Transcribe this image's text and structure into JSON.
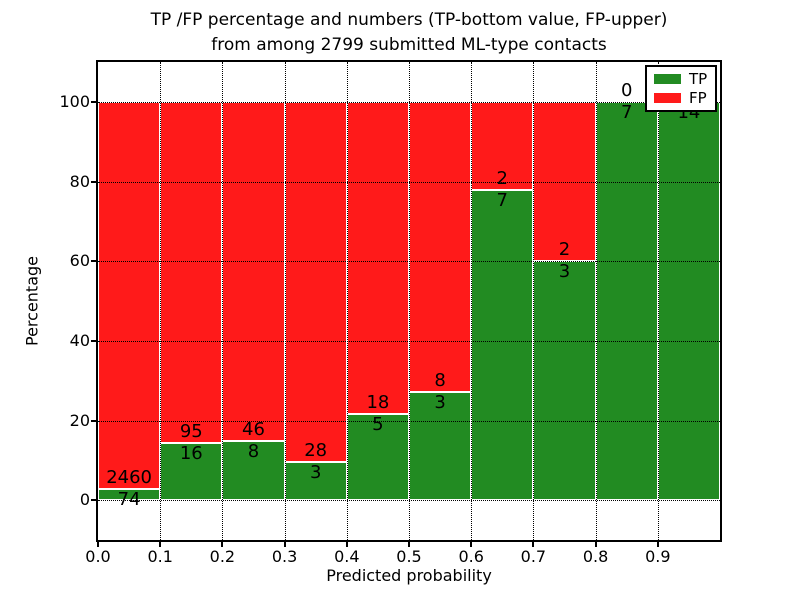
{
  "chart_data": {
    "type": "bar",
    "stacked": true,
    "normalized_to_percent": true,
    "title": "TP /FP percentage and numbers (TP-bottom value, FP-upper) from among 2799 submitted ML-type contacts",
    "title_line1": "TP /FP percentage and numbers (TP-bottom value, FP-upper)",
    "title_line2": "from among 2799 submitted ML-type contacts",
    "xlabel": "Predicted probability",
    "ylabel": "Percentage",
    "xtick_labels": [
      "0.0",
      "0.1",
      "0.2",
      "0.3",
      "0.4",
      "0.5",
      "0.6",
      "0.7",
      "0.8",
      "0.9"
    ],
    "yticks": [
      0,
      20,
      40,
      60,
      80,
      100
    ],
    "ylim": [
      -10,
      110
    ],
    "xlim": [
      0.0,
      1.0
    ],
    "bin_width": 0.1,
    "series": [
      {
        "name": "TP",
        "color": "#228b22",
        "counts": [
          74,
          16,
          8,
          3,
          5,
          3,
          7,
          3,
          7,
          14
        ]
      },
      {
        "name": "FP",
        "color": "#ff1a1a",
        "counts": [
          2460,
          95,
          46,
          28,
          18,
          8,
          2,
          2,
          0,
          0
        ]
      }
    ],
    "tp_percent_of_bin": [
      2.9,
      14.4,
      14.8,
      9.7,
      21.7,
      27.3,
      77.8,
      60.0,
      100.0,
      100.0
    ],
    "grid": {
      "style": "dotted",
      "color": "#000000"
    },
    "legend": {
      "position": "upper-right",
      "entries": [
        {
          "label": "TP",
          "color": "#228b22"
        },
        {
          "label": "FP",
          "color": "#ff1a1a"
        }
      ]
    }
  }
}
